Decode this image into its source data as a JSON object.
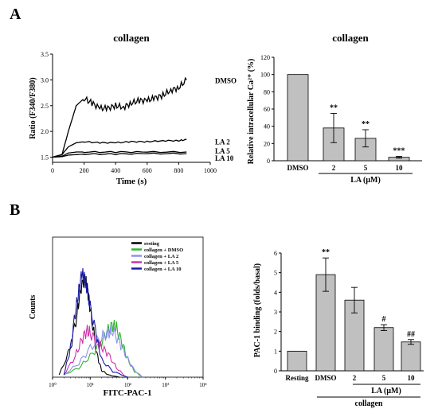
{
  "panel_labels": {
    "a": "A",
    "b": "B"
  },
  "chart_data": [
    {
      "type": "line",
      "title": "collagen",
      "xlabel": "Time (s)",
      "ylabel": "Ratio (F340/F380)",
      "xlim": [
        0,
        1000
      ],
      "ylim": [
        1.4,
        3.5
      ],
      "xticks": [
        "0",
        "200",
        "400",
        "600",
        "800",
        "1000"
      ],
      "yticks": [
        "1.5",
        "2.0",
        "2.5",
        "3.0",
        "3.5"
      ],
      "grid": false,
      "series": [
        {
          "name": "DMSO",
          "x": [
            0,
            60,
            100,
            150,
            200,
            250,
            300,
            350,
            400,
            450,
            500,
            550,
            600,
            650,
            700,
            750,
            800,
            850
          ],
          "y": [
            1.5,
            1.55,
            2.0,
            2.5,
            2.64,
            2.55,
            2.45,
            2.45,
            2.5,
            2.47,
            2.55,
            2.6,
            2.6,
            2.65,
            2.7,
            2.8,
            2.85,
            3.0
          ]
        },
        {
          "name": "LA 2",
          "x": [
            0,
            60,
            100,
            150,
            200,
            300,
            400,
            500,
            600,
            700,
            800,
            850
          ],
          "y": [
            1.5,
            1.55,
            1.7,
            1.78,
            1.8,
            1.78,
            1.78,
            1.8,
            1.8,
            1.82,
            1.82,
            1.84
          ]
        },
        {
          "name": "LA 5",
          "x": [
            0,
            60,
            100,
            150,
            200,
            400,
            600,
            850
          ],
          "y": [
            1.5,
            1.52,
            1.58,
            1.6,
            1.6,
            1.6,
            1.6,
            1.6
          ]
        },
        {
          "name": "LA 10",
          "x": [
            0,
            60,
            100,
            150,
            200,
            400,
            600,
            850
          ],
          "y": [
            1.5,
            1.51,
            1.54,
            1.55,
            1.56,
            1.56,
            1.57,
            1.57
          ]
        }
      ]
    },
    {
      "type": "bar",
      "title": "collagen",
      "ylabel": "Relative intracellular Ca²⁺ (%)",
      "ylim": [
        0,
        120
      ],
      "yticks": [
        "0",
        "20",
        "40",
        "60",
        "80",
        "100",
        "120"
      ],
      "categories": [
        "DMSO",
        "2",
        "5",
        "10"
      ],
      "values": [
        100,
        38,
        26,
        4
      ],
      "errors": [
        0,
        17,
        10,
        1
      ],
      "annotations": [
        "",
        "**",
        "**",
        "***"
      ],
      "group_label": "LA (μM)"
    },
    {
      "type": "line",
      "xlabel": "FITC-PAC-1",
      "ylabel": "Counts",
      "xscale": "log",
      "xlim": [
        1,
        10000
      ],
      "xticks": [
        "10⁰",
        "10¹",
        "10²",
        "10³",
        "10⁴"
      ],
      "legend_position": "top-right",
      "series": [
        {
          "name": "resting",
          "color": "#000000",
          "x": [
            1.5,
            3,
            4.5,
            5.5,
            7,
            8,
            9,
            11,
            15,
            20,
            30,
            60
          ],
          "y": [
            2,
            25,
            55,
            75,
            85,
            80,
            70,
            50,
            20,
            6,
            2,
            0
          ]
        },
        {
          "name": "collagen + DMSO",
          "color": "#2db52d",
          "x": [
            2,
            5,
            10,
            20,
            30,
            40,
            50,
            70,
            100,
            150,
            250
          ],
          "y": [
            2,
            8,
            18,
            30,
            40,
            45,
            42,
            30,
            15,
            5,
            0
          ]
        },
        {
          "name": "collagen + LA 2",
          "color": "#8f8ff2",
          "x": [
            2,
            5,
            10,
            20,
            30,
            40,
            60,
            90,
            150,
            250
          ],
          "y": [
            2,
            12,
            25,
            35,
            38,
            40,
            30,
            18,
            6,
            0
          ]
        },
        {
          "name": "collagen + LA 5",
          "color": "#cc33aa",
          "x": [
            2,
            4,
            6,
            8,
            10,
            15,
            20,
            30,
            50,
            90
          ],
          "y": [
            2,
            18,
            32,
            40,
            38,
            30,
            26,
            20,
            8,
            0
          ]
        },
        {
          "name": "collagen + LA 10",
          "color": "#1a1aa8",
          "x": [
            2,
            3,
            4,
            5,
            6,
            7,
            8,
            10,
            15,
            20,
            40,
            100
          ],
          "y": [
            2,
            25,
            55,
            75,
            90,
            85,
            78,
            60,
            35,
            15,
            5,
            0
          ]
        }
      ]
    },
    {
      "type": "bar",
      "ylabel": "PAC-1 binding (folds/basal)",
      "ylim": [
        0,
        6
      ],
      "yticks": [
        "0",
        "1",
        "2",
        "3",
        "4",
        "5",
        "6"
      ],
      "categories": [
        "Resting",
        "DMSO",
        "2",
        "5",
        "10"
      ],
      "values": [
        1.0,
        4.9,
        3.6,
        2.2,
        1.47
      ],
      "errors": [
        0,
        0.85,
        0.65,
        0.15,
        0.12
      ],
      "annotations": [
        "",
        "**",
        "",
        "#",
        "##"
      ],
      "group_label": "LA (μM)",
      "bottom_label": "collagen"
    }
  ]
}
